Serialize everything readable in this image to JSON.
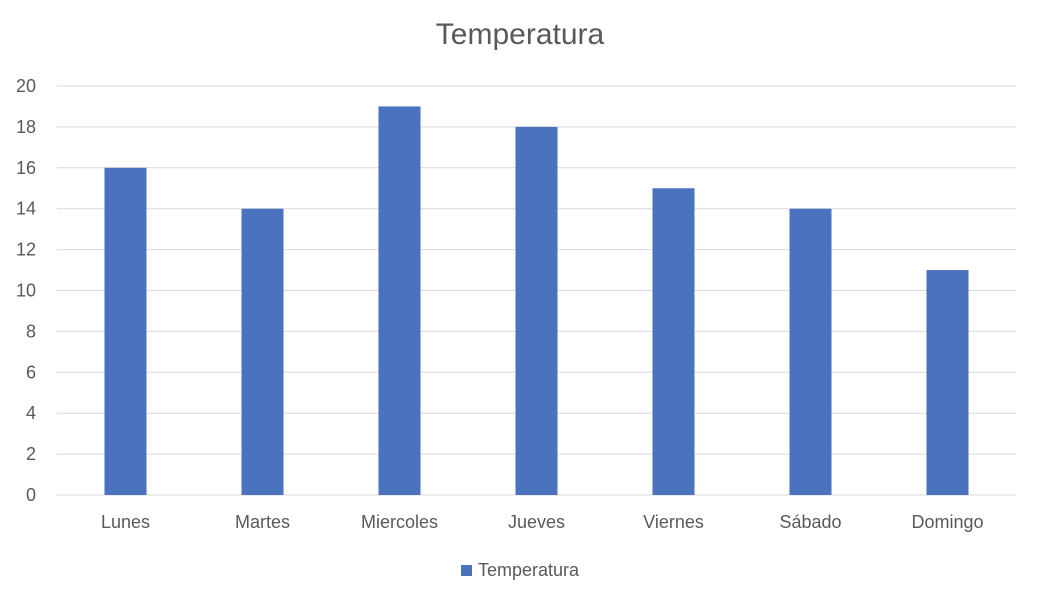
{
  "chart_data": {
    "type": "bar",
    "title": "Temperatura",
    "xlabel": "",
    "ylabel": "",
    "categories": [
      "Lunes",
      "Martes",
      "Miercoles",
      "Jueves",
      "Viernes",
      "Sábado",
      "Domingo"
    ],
    "series": [
      {
        "name": "Temperatura",
        "values": [
          16,
          14,
          19,
          18,
          15,
          14,
          11
        ],
        "color": "#4a72bf"
      }
    ],
    "ylim": [
      0,
      20
    ],
    "yticks": [
      "0",
      "2",
      "4",
      "6",
      "8",
      "10",
      "12",
      "14",
      "16",
      "18",
      "20"
    ],
    "grid": true,
    "gridColor": "#d9d9d9",
    "legend": "bottom"
  }
}
